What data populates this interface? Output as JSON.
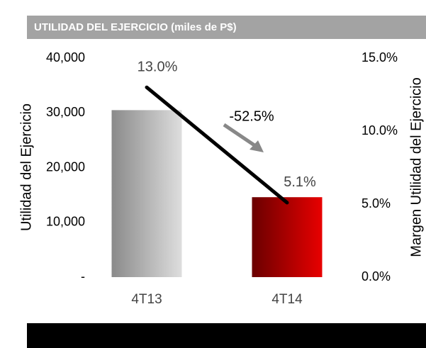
{
  "chart_data": {
    "type": "bar_line",
    "title": "UTILIDAD DEL EJERCICIO (miles de P$)",
    "y_label": "Utilidad del Ejercicio",
    "y2_label": "Margen Utilidad del Ejercicio",
    "annotation": "-52.5%",
    "categories": [
      "4T13",
      "4T14"
    ],
    "series": [
      {
        "type": "bar",
        "colors": [
          [
            "#8a8a8a",
            "#dedede"
          ],
          [
            "#6a0000",
            "#e80000"
          ]
        ],
        "values": [
          30500,
          14600
        ]
      },
      {
        "type": "line",
        "axis": "y2",
        "color": "#000000",
        "values": [
          13.0,
          5.1
        ],
        "value_labels": [
          "13.0%",
          "5.1%"
        ]
      }
    ],
    "ylim": [
      0,
      40000
    ],
    "yticks": [
      {
        "value": 0,
        "label": "-"
      },
      {
        "value": 10000,
        "label": "10,000"
      },
      {
        "value": 20000,
        "label": "20,000"
      },
      {
        "value": 30000,
        "label": "30,000"
      },
      {
        "value": 40000,
        "label": "40,000"
      }
    ],
    "y2lim": [
      0,
      15
    ],
    "y2ticks": [
      {
        "value": 0,
        "label": "0.0%"
      },
      {
        "value": 5,
        "label": "5.0%"
      },
      {
        "value": 10,
        "label": "10.0%"
      },
      {
        "value": 15,
        "label": "15.0%"
      }
    ],
    "grid": false
  }
}
